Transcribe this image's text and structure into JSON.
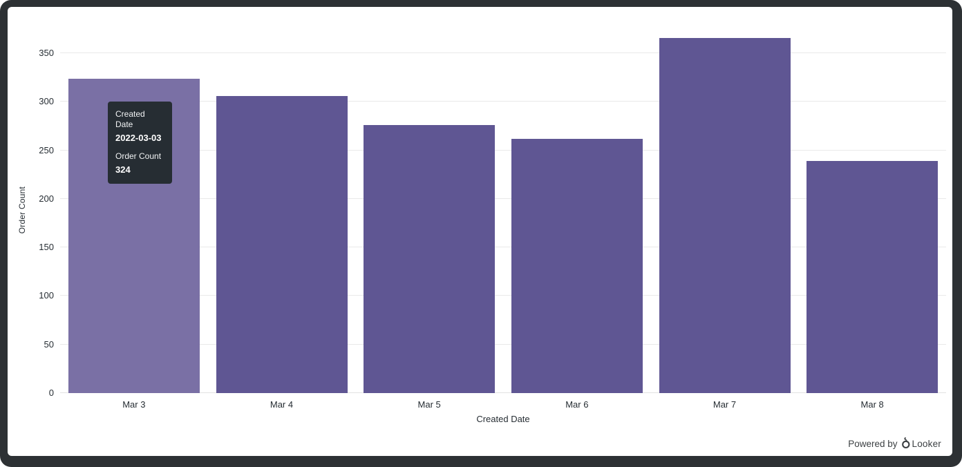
{
  "window": {
    "frame_color": "#2d3134",
    "card_color": "#ffffff"
  },
  "chart_data": {
    "type": "bar",
    "categories": [
      "Mar 3",
      "Mar 4",
      "Mar 5",
      "Mar 6",
      "Mar 7",
      "Mar 8"
    ],
    "values": [
      324,
      306,
      276,
      262,
      366,
      239
    ],
    "title": "",
    "xlabel": "Created Date",
    "ylabel": "Order Count",
    "ylim": [
      0,
      350
    ],
    "yticks": [
      0,
      50,
      100,
      150,
      200,
      250,
      300,
      350
    ],
    "grid": true,
    "legend": false,
    "bar_color": "#5f5693",
    "bar_hover_color": "#7a70a5",
    "hovered_index": 0,
    "gridline_color": "#e9e9e9"
  },
  "tooltip": {
    "bg": "#262d33",
    "rows": [
      {
        "label": "Created Date",
        "value": "2022-03-03"
      },
      {
        "label": "Order Count",
        "value": "324"
      }
    ]
  },
  "footer": {
    "powered_by": "Powered by",
    "brand": "Looker"
  }
}
